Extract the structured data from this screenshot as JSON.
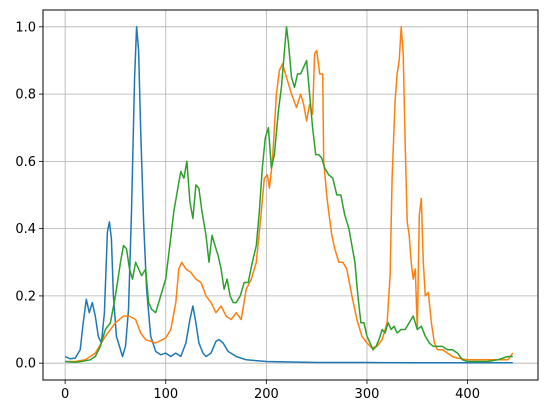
{
  "chart_data": {
    "type": "line",
    "title": "",
    "xlabel": "",
    "ylabel": "",
    "xlim": [
      -22,
      470
    ],
    "ylim": [
      -0.05,
      1.05
    ],
    "x_ticks": [
      0,
      100,
      200,
      300,
      400
    ],
    "y_ticks": [
      0.0,
      0.2,
      0.4,
      0.6,
      0.8,
      1.0
    ],
    "x_tick_labels": [
      "0",
      "100",
      "200",
      "300",
      "400"
    ],
    "y_tick_labels": [
      "0.0",
      "0.2",
      "0.4",
      "0.6",
      "0.8",
      "1.0"
    ],
    "grid": true,
    "series": [
      {
        "color": "#1f77b4",
        "points": [
          [
            0,
            0.02
          ],
          [
            5,
            0.013
          ],
          [
            10,
            0.015
          ],
          [
            15,
            0.04
          ],
          [
            18,
            0.12
          ],
          [
            21,
            0.19
          ],
          [
            24,
            0.15
          ],
          [
            27,
            0.18
          ],
          [
            30,
            0.14
          ],
          [
            33,
            0.08
          ],
          [
            36,
            0.06
          ],
          [
            39,
            0.15
          ],
          [
            42,
            0.39
          ],
          [
            44,
            0.42
          ],
          [
            46,
            0.37
          ],
          [
            48,
            0.2
          ],
          [
            51,
            0.08
          ],
          [
            54,
            0.05
          ],
          [
            57,
            0.02
          ],
          [
            60,
            0.05
          ],
          [
            63,
            0.16
          ],
          [
            66,
            0.45
          ],
          [
            69,
            0.85
          ],
          [
            71,
            1.0
          ],
          [
            73,
            0.93
          ],
          [
            75,
            0.7
          ],
          [
            78,
            0.42
          ],
          [
            81,
            0.22
          ],
          [
            85,
            0.08
          ],
          [
            90,
            0.035
          ],
          [
            95,
            0.025
          ],
          [
            100,
            0.03
          ],
          [
            105,
            0.02
          ],
          [
            110,
            0.03
          ],
          [
            115,
            0.02
          ],
          [
            120,
            0.06
          ],
          [
            124,
            0.13
          ],
          [
            127,
            0.17
          ],
          [
            130,
            0.12
          ],
          [
            133,
            0.06
          ],
          [
            137,
            0.03
          ],
          [
            140,
            0.02
          ],
          [
            145,
            0.03
          ],
          [
            150,
            0.065
          ],
          [
            153,
            0.07
          ],
          [
            157,
            0.06
          ],
          [
            162,
            0.035
          ],
          [
            170,
            0.02
          ],
          [
            180,
            0.01
          ],
          [
            200,
            0.005
          ],
          [
            250,
            0.002
          ],
          [
            300,
            0.002
          ],
          [
            350,
            0.001
          ],
          [
            400,
            0.001
          ],
          [
            445,
            0.001
          ]
        ]
      },
      {
        "color": "#ff7f0e",
        "points": [
          [
            0,
            0.005
          ],
          [
            10,
            0.005
          ],
          [
            20,
            0.01
          ],
          [
            30,
            0.03
          ],
          [
            40,
            0.08
          ],
          [
            50,
            0.12
          ],
          [
            58,
            0.14
          ],
          [
            64,
            0.14
          ],
          [
            70,
            0.13
          ],
          [
            75,
            0.09
          ],
          [
            80,
            0.07
          ],
          [
            90,
            0.06
          ],
          [
            100,
            0.075
          ],
          [
            105,
            0.1
          ],
          [
            110,
            0.18
          ],
          [
            113,
            0.28
          ],
          [
            116,
            0.3
          ],
          [
            120,
            0.28
          ],
          [
            125,
            0.27
          ],
          [
            130,
            0.25
          ],
          [
            135,
            0.24
          ],
          [
            140,
            0.2
          ],
          [
            145,
            0.18
          ],
          [
            150,
            0.15
          ],
          [
            155,
            0.17
          ],
          [
            160,
            0.14
          ],
          [
            165,
            0.13
          ],
          [
            170,
            0.15
          ],
          [
            175,
            0.13
          ],
          [
            180,
            0.22
          ],
          [
            185,
            0.25
          ],
          [
            190,
            0.3
          ],
          [
            195,
            0.45
          ],
          [
            198,
            0.55
          ],
          [
            201,
            0.56
          ],
          [
            203,
            0.52
          ],
          [
            206,
            0.6
          ],
          [
            210,
            0.8
          ],
          [
            213,
            0.87
          ],
          [
            216,
            0.89
          ],
          [
            220,
            0.85
          ],
          [
            225,
            0.8
          ],
          [
            230,
            0.76
          ],
          [
            234,
            0.8
          ],
          [
            237,
            0.77
          ],
          [
            240,
            0.72
          ],
          [
            243,
            0.77
          ],
          [
            246,
            0.74
          ],
          [
            248,
            0.92
          ],
          [
            250,
            0.93
          ],
          [
            253,
            0.86
          ],
          [
            256,
            0.86
          ],
          [
            257,
            0.6
          ],
          [
            260,
            0.5
          ],
          [
            262,
            0.45
          ],
          [
            265,
            0.38
          ],
          [
            268,
            0.34
          ],
          [
            272,
            0.3
          ],
          [
            276,
            0.3
          ],
          [
            280,
            0.28
          ],
          [
            285,
            0.2
          ],
          [
            290,
            0.13
          ],
          [
            295,
            0.08
          ],
          [
            300,
            0.06
          ],
          [
            305,
            0.045
          ],
          [
            310,
            0.05
          ],
          [
            315,
            0.07
          ],
          [
            320,
            0.12
          ],
          [
            323,
            0.26
          ],
          [
            325,
            0.55
          ],
          [
            328,
            0.78
          ],
          [
            330,
            0.86
          ],
          [
            332,
            0.9
          ],
          [
            334,
            1.0
          ],
          [
            336,
            0.92
          ],
          [
            338,
            0.65
          ],
          [
            340,
            0.42
          ],
          [
            342,
            0.38
          ],
          [
            344,
            0.3
          ],
          [
            346,
            0.25
          ],
          [
            348,
            0.28
          ],
          [
            350,
            0.1
          ],
          [
            352,
            0.44
          ],
          [
            354,
            0.49
          ],
          [
            356,
            0.3
          ],
          [
            358,
            0.2
          ],
          [
            361,
            0.21
          ],
          [
            364,
            0.12
          ],
          [
            367,
            0.06
          ],
          [
            370,
            0.04
          ],
          [
            375,
            0.04
          ],
          [
            380,
            0.03
          ],
          [
            385,
            0.02
          ],
          [
            390,
            0.015
          ],
          [
            400,
            0.01
          ],
          [
            410,
            0.01
          ],
          [
            420,
            0.01
          ],
          [
            430,
            0.01
          ],
          [
            440,
            0.01
          ],
          [
            445,
            0.03
          ]
        ]
      },
      {
        "color": "#2ca02c",
        "points": [
          [
            0,
            0.005
          ],
          [
            10,
            0.003
          ],
          [
            18,
            0.006
          ],
          [
            25,
            0.01
          ],
          [
            30,
            0.02
          ],
          [
            35,
            0.05
          ],
          [
            40,
            0.1
          ],
          [
            45,
            0.12
          ],
          [
            50,
            0.2
          ],
          [
            55,
            0.3
          ],
          [
            58,
            0.35
          ],
          [
            61,
            0.34
          ],
          [
            64,
            0.28
          ],
          [
            67,
            0.25
          ],
          [
            70,
            0.3
          ],
          [
            73,
            0.28
          ],
          [
            76,
            0.26
          ],
          [
            80,
            0.28
          ],
          [
            83,
            0.18
          ],
          [
            86,
            0.16
          ],
          [
            90,
            0.15
          ],
          [
            95,
            0.2
          ],
          [
            100,
            0.25
          ],
          [
            104,
            0.35
          ],
          [
            108,
            0.45
          ],
          [
            112,
            0.52
          ],
          [
            115,
            0.57
          ],
          [
            118,
            0.55
          ],
          [
            121,
            0.6
          ],
          [
            124,
            0.48
          ],
          [
            127,
            0.43
          ],
          [
            130,
            0.53
          ],
          [
            133,
            0.52
          ],
          [
            136,
            0.45
          ],
          [
            140,
            0.38
          ],
          [
            143,
            0.3
          ],
          [
            146,
            0.38
          ],
          [
            149,
            0.35
          ],
          [
            152,
            0.32
          ],
          [
            155,
            0.28
          ],
          [
            158,
            0.22
          ],
          [
            161,
            0.25
          ],
          [
            164,
            0.2
          ],
          [
            167,
            0.18
          ],
          [
            170,
            0.18
          ],
          [
            174,
            0.2
          ],
          [
            178,
            0.24
          ],
          [
            182,
            0.24
          ],
          [
            186,
            0.3
          ],
          [
            190,
            0.35
          ],
          [
            193,
            0.45
          ],
          [
            196,
            0.58
          ],
          [
            199,
            0.67
          ],
          [
            202,
            0.7
          ],
          [
            205,
            0.58
          ],
          [
            208,
            0.62
          ],
          [
            212,
            0.75
          ],
          [
            215,
            0.82
          ],
          [
            218,
            0.93
          ],
          [
            220,
            1.0
          ],
          [
            222,
            0.95
          ],
          [
            225,
            0.85
          ],
          [
            228,
            0.82
          ],
          [
            231,
            0.86
          ],
          [
            234,
            0.86
          ],
          [
            237,
            0.88
          ],
          [
            240,
            0.9
          ],
          [
            243,
            0.8
          ],
          [
            246,
            0.7
          ],
          [
            249,
            0.62
          ],
          [
            252,
            0.62
          ],
          [
            255,
            0.61
          ],
          [
            258,
            0.58
          ],
          [
            262,
            0.56
          ],
          [
            266,
            0.55
          ],
          [
            270,
            0.5
          ],
          [
            274,
            0.5
          ],
          [
            278,
            0.44
          ],
          [
            282,
            0.4
          ],
          [
            285,
            0.35
          ],
          [
            288,
            0.3
          ],
          [
            291,
            0.2
          ],
          [
            294,
            0.12
          ],
          [
            297,
            0.12
          ],
          [
            300,
            0.08
          ],
          [
            303,
            0.06
          ],
          [
            306,
            0.04
          ],
          [
            309,
            0.05
          ],
          [
            312,
            0.07
          ],
          [
            315,
            0.1
          ],
          [
            318,
            0.09
          ],
          [
            321,
            0.12
          ],
          [
            324,
            0.1
          ],
          [
            327,
            0.11
          ],
          [
            330,
            0.09
          ],
          [
            334,
            0.1
          ],
          [
            338,
            0.1
          ],
          [
            342,
            0.12
          ],
          [
            346,
            0.14
          ],
          [
            350,
            0.1
          ],
          [
            354,
            0.11
          ],
          [
            358,
            0.08
          ],
          [
            362,
            0.06
          ],
          [
            366,
            0.05
          ],
          [
            370,
            0.05
          ],
          [
            375,
            0.05
          ],
          [
            380,
            0.04
          ],
          [
            385,
            0.04
          ],
          [
            390,
            0.03
          ],
          [
            395,
            0.01
          ],
          [
            400,
            0.005
          ],
          [
            410,
            0.005
          ],
          [
            420,
            0.005
          ],
          [
            430,
            0.01
          ],
          [
            440,
            0.02
          ],
          [
            445,
            0.02
          ]
        ]
      }
    ]
  }
}
